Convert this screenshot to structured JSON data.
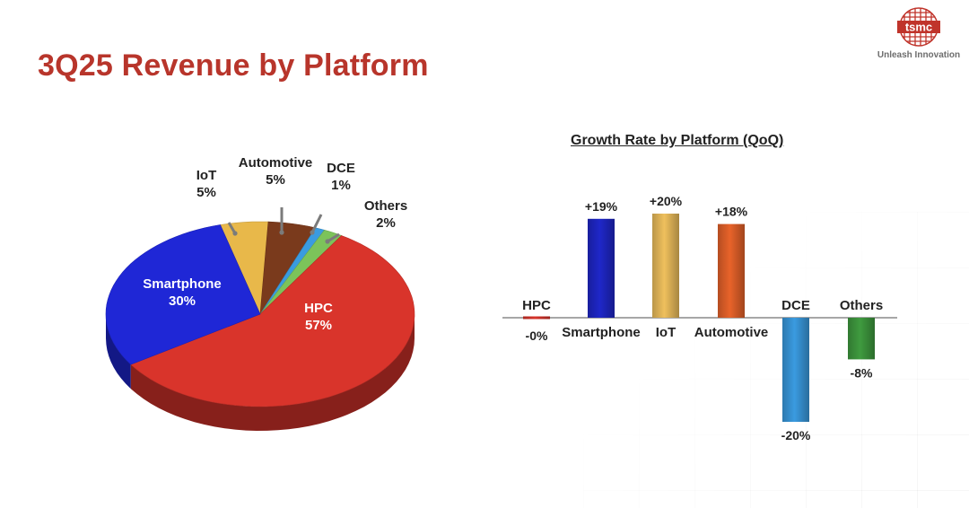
{
  "title": "3Q25 Revenue by Platform",
  "logo": {
    "wordmark": "tsmc",
    "tagline": "Unleash Innovation"
  },
  "chart_data": [
    {
      "type": "pie",
      "title": "",
      "slices": [
        {
          "name": "HPC",
          "value": 57,
          "label": "57%",
          "color": "#d9342b"
        },
        {
          "name": "Smartphone",
          "value": 30,
          "label": "30%",
          "color": "#1f27d6"
        },
        {
          "name": "IoT",
          "value": 5,
          "label": "5%",
          "color": "#e8b84a"
        },
        {
          "name": "Automotive",
          "value": 5,
          "label": "5%",
          "color": "#7a3a1c"
        },
        {
          "name": "DCE",
          "value": 1,
          "label": "1%",
          "color": "#3a9be0"
        },
        {
          "name": "Others",
          "value": 2,
          "label": "2%",
          "color": "#7cc35a"
        }
      ]
    },
    {
      "type": "bar",
      "title": "Growth Rate by Platform (QoQ)",
      "categories": [
        "HPC",
        "Smartphone",
        "IoT",
        "Automotive",
        "DCE",
        "Others"
      ],
      "values": [
        0,
        19,
        20,
        18,
        -20,
        -8
      ],
      "data_labels": [
        "-0%",
        "+19%",
        "+20%",
        "+18%",
        "-20%",
        "-8%"
      ],
      "colors": [
        "#d9342b",
        "#1f27c9",
        "#efc05d",
        "#e8632a",
        "#3a9be0",
        "#3f9b3f"
      ],
      "ylim": [
        -20,
        20
      ],
      "grid": false,
      "xlabel": "",
      "ylabel": ""
    }
  ]
}
